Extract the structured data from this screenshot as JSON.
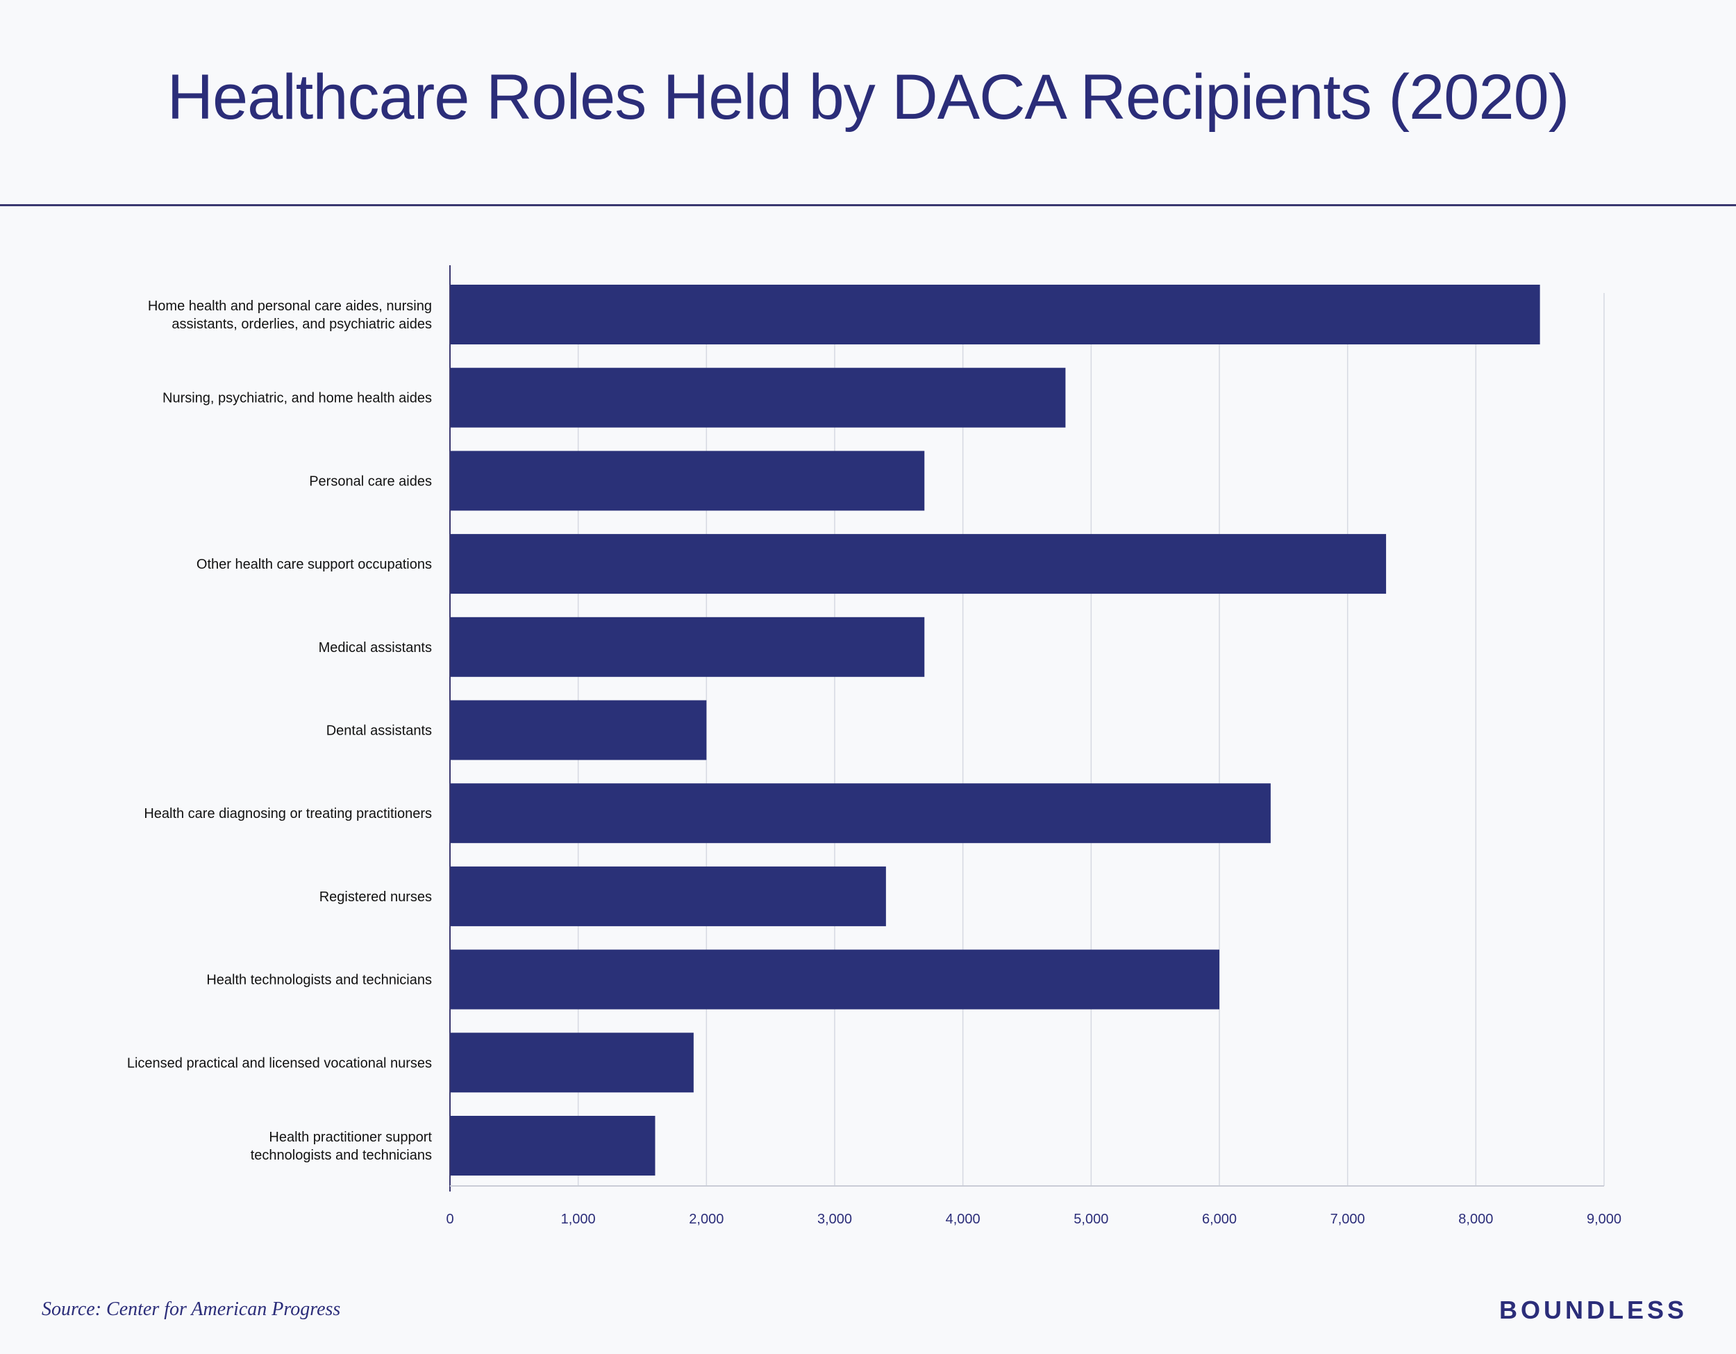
{
  "chart_data": {
    "type": "bar",
    "orientation": "horizontal",
    "title": "Healthcare Roles Held by DACA Recipients (2020)",
    "categories": [
      [
        "Home health and personal care aides, nursing",
        "assistants, orderlies, and psychiatric aides"
      ],
      [
        "Nursing, psychiatric, and home health aides"
      ],
      [
        "Personal care aides"
      ],
      [
        "Other health care support occupations"
      ],
      [
        "Medical assistants"
      ],
      [
        "Dental assistants"
      ],
      [
        "Health care diagnosing or treating practitioners"
      ],
      [
        "Registered nurses"
      ],
      [
        "Health technologists and technicians"
      ],
      [
        "Licensed practical and licensed vocational nurses"
      ],
      [
        "Health practitioner support",
        "technologists and technicians"
      ]
    ],
    "values": [
      8500,
      4800,
      3700,
      7300,
      3700,
      2000,
      6400,
      3400,
      6000,
      1900,
      1600
    ],
    "xlim": [
      0,
      9000
    ],
    "xticks": [
      0,
      1000,
      2000,
      3000,
      4000,
      5000,
      6000,
      7000,
      8000,
      9000
    ],
    "xtick_labels": [
      "0",
      "1,000",
      "2,000",
      "3,000",
      "4,000",
      "5,000",
      "6,000",
      "7,000",
      "8,000",
      "9,000"
    ],
    "grid": true,
    "bar_color": "#2a3178",
    "grid_color": "#d6d9e2"
  },
  "footer": {
    "source": "Source: Center for American Progress",
    "brand": "BOUNDLESS"
  },
  "colors": {
    "accent": "#2b2d79",
    "background": "#f8f9fb"
  }
}
